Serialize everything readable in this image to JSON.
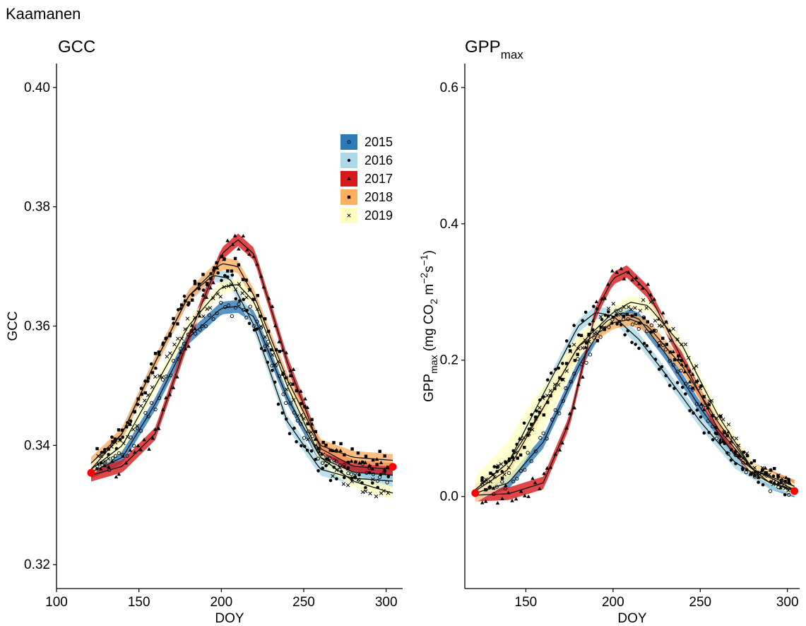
{
  "figure": {
    "site_title": "Kaamanen"
  },
  "chart_data": [
    {
      "type": "scatter",
      "title": "GCC",
      "xlabel": "DOY",
      "ylabel": "GCC",
      "xlim": [
        100,
        310
      ],
      "ylim": [
        0.316,
        0.404
      ],
      "x_ticks": [
        100,
        150,
        200,
        250,
        300
      ],
      "x_tick_labels": [
        "100",
        "150",
        "200",
        "250",
        "300"
      ],
      "y_ticks": [
        0.32,
        0.34,
        0.36,
        0.38,
        0.4
      ],
      "y_tick_labels": [
        "0.32",
        "0.34",
        "0.36",
        "0.38",
        "0.40"
      ],
      "grid": false,
      "legend_position": "top-right",
      "series": [
        {
          "name": "2015",
          "color": "#2c7bb6",
          "marker": "open-circle",
          "curve": {
            "x": [
              121,
              140,
              160,
              180,
              200,
              210,
              220,
              240,
              260,
              280,
              304
            ],
            "y": [
              0.3355,
              0.338,
              0.347,
              0.358,
              0.363,
              0.3633,
              0.3615,
              0.348,
              0.338,
              0.3355,
              0.335
            ]
          }
        },
        {
          "name": "2016",
          "color": "#abd9e9",
          "marker": "dot",
          "curve": {
            "x": [
              121,
              140,
              160,
              180,
              195,
              205,
              220,
              240,
              260,
              280,
              304
            ],
            "y": [
              0.336,
              0.342,
              0.354,
              0.365,
              0.3685,
              0.368,
              0.36,
              0.344,
              0.336,
              0.3345,
              0.334
            ]
          }
        },
        {
          "name": "2017",
          "color": "#d7191c",
          "marker": "triangle",
          "curve": {
            "x": [
              121,
              140,
              160,
              180,
              200,
              210,
              220,
              240,
              260,
              280,
              304
            ],
            "y": [
              0.335,
              0.3365,
              0.342,
              0.358,
              0.372,
              0.3745,
              0.372,
              0.354,
              0.3395,
              0.3365,
              0.336
            ]
          }
        },
        {
          "name": "2018",
          "color": "#fdae61",
          "marker": "square",
          "curve": {
            "x": [
              121,
              140,
              160,
              180,
              200,
              210,
              220,
              240,
              260,
              280,
              304
            ],
            "y": [
              0.337,
              0.342,
              0.354,
              0.365,
              0.3705,
              0.37,
              0.365,
              0.351,
              0.34,
              0.338,
              0.3375
            ]
          }
        },
        {
          "name": "2019",
          "color": "#ffffbf",
          "marker": "cross",
          "curve": {
            "x": [
              121,
              140,
              160,
              180,
              200,
              210,
              220,
              240,
              260,
              280,
              304
            ],
            "y": [
              0.336,
              0.34,
              0.35,
              0.36,
              0.3665,
              0.367,
              0.364,
              0.35,
              0.338,
              0.334,
              0.332
            ]
          }
        }
      ],
      "highlight_points": [
        {
          "x": 121,
          "y": 0.3354,
          "color": "#ff0000"
        },
        {
          "x": 304,
          "y": 0.3364,
          "color": "#ff0000"
        }
      ]
    },
    {
      "type": "scatter",
      "title": "GPP",
      "title_sub": "max",
      "xlabel": "DOY",
      "ylabel_parts": [
        "GPP",
        "max",
        " (mg CO",
        "2",
        " m",
        "−2",
        "s",
        "−1",
        ")"
      ],
      "xlim": [
        115,
        307
      ],
      "ylim": [
        -0.135,
        0.635
      ],
      "x_ticks": [
        150,
        200,
        250,
        300
      ],
      "x_tick_labels": [
        "150",
        "200",
        "250",
        "300"
      ],
      "y_ticks": [
        0.0,
        0.2,
        0.4,
        0.6
      ],
      "y_tick_labels": [
        "0.0",
        "0.2",
        "0.4",
        "0.6"
      ],
      "grid": false,
      "series": [
        {
          "name": "2015",
          "color": "#2c7bb6",
          "marker": "open-circle",
          "curve": {
            "x": [
              121,
              140,
              160,
              180,
              195,
              205,
              215,
              230,
              250,
              270,
              290,
              304
            ],
            "y": [
              0.005,
              0.02,
              0.08,
              0.19,
              0.255,
              0.27,
              0.26,
              0.21,
              0.13,
              0.06,
              0.02,
              0.008
            ]
          }
        },
        {
          "name": "2016",
          "color": "#abd9e9",
          "marker": "dot",
          "curve": {
            "x": [
              121,
              140,
              160,
              180,
              190,
              200,
              215,
              230,
              250,
              270,
              290,
              304
            ],
            "y": [
              0.01,
              0.05,
              0.15,
              0.25,
              0.27,
              0.265,
              0.23,
              0.18,
              0.11,
              0.05,
              0.02,
              0.01
            ]
          }
        },
        {
          "name": "2017",
          "color": "#d7191c",
          "marker": "triangle",
          "curve": {
            "x": [
              121,
              140,
              160,
              175,
              190,
              200,
              208,
              220,
              240,
              260,
              280,
              304
            ],
            "y": [
              0.002,
              0.004,
              0.02,
              0.11,
              0.27,
              0.32,
              0.33,
              0.3,
              0.2,
              0.1,
              0.04,
              0.015
            ]
          }
        },
        {
          "name": "2018",
          "color": "#fdae61",
          "marker": "square",
          "curve": {
            "x": [
              121,
              140,
              160,
              180,
              200,
              210,
              220,
              240,
              260,
              280,
              304
            ],
            "y": [
              0.008,
              0.04,
              0.13,
              0.22,
              0.255,
              0.26,
              0.25,
              0.19,
              0.11,
              0.04,
              0.015
            ]
          }
        },
        {
          "name": "2019",
          "color": "#ffffbf",
          "marker": "cross",
          "curve": {
            "x": [
              121,
              140,
              160,
              180,
              200,
              210,
              220,
              240,
              260,
              280,
              304
            ],
            "y": [
              0.01,
              0.05,
              0.13,
              0.22,
              0.27,
              0.285,
              0.28,
              0.22,
              0.12,
              0.04,
              0.01
            ]
          }
        }
      ],
      "highlight_points": [
        {
          "x": 121,
          "y": 0.005,
          "color": "#ff0000"
        },
        {
          "x": 304,
          "y": 0.008,
          "color": "#ff0000"
        }
      ]
    }
  ]
}
